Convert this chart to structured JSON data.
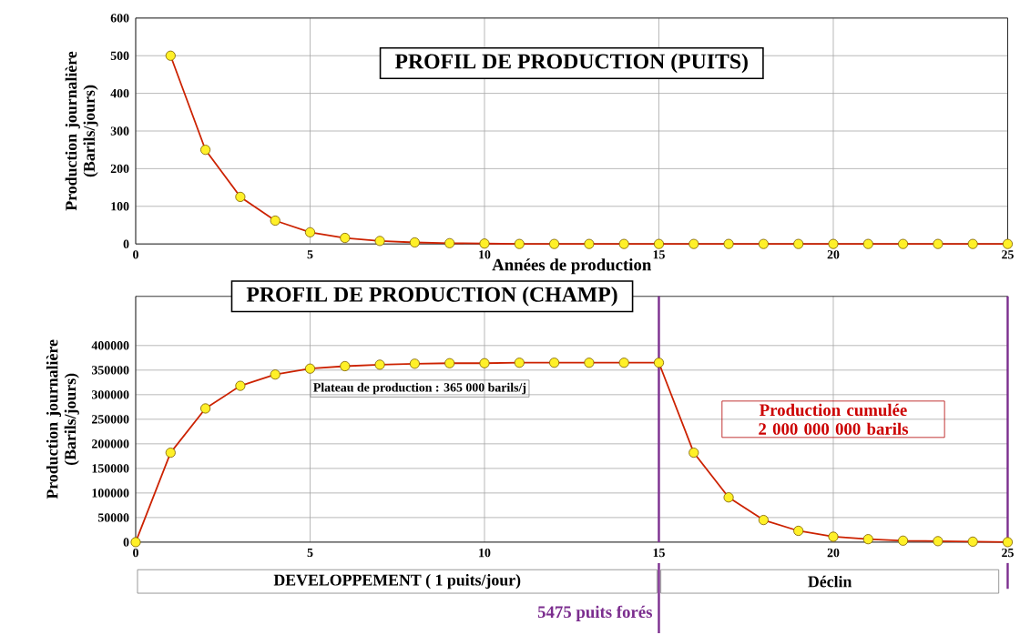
{
  "chart_data": [
    {
      "type": "line",
      "title": "PROFIL DE PRODUCTION (PUITS)",
      "xlabel": "Années de production",
      "ylabel": "Production journalière (Barils/jours)",
      "x": [
        1,
        2,
        3,
        4,
        5,
        6,
        7,
        8,
        9,
        10,
        11,
        12,
        13,
        14,
        15,
        16,
        17,
        18,
        19,
        20,
        21,
        22,
        23,
        24,
        25
      ],
      "series": [
        {
          "color": "#cc2200",
          "values": [
            500,
            250,
            125,
            62,
            31,
            16,
            8,
            4,
            2,
            1,
            0,
            0,
            0,
            0,
            0,
            0,
            0,
            0,
            0,
            0,
            0,
            0,
            0,
            0,
            0
          ]
        }
      ],
      "xlim": [
        0,
        25
      ],
      "ylim": [
        0,
        600
      ],
      "xticks": [
        0,
        5,
        10,
        15,
        20,
        25
      ],
      "yticks": [
        0,
        100,
        200,
        300,
        400,
        500,
        600
      ],
      "grid": true,
      "marker": "circle"
    },
    {
      "type": "line",
      "title": "PROFIL DE PRODUCTION (CHAMP)",
      "ylabel": "Production journalière (Barils/jours)",
      "x": [
        0,
        1,
        2,
        3,
        4,
        5,
        6,
        7,
        8,
        9,
        10,
        11,
        12,
        13,
        14,
        15,
        16,
        17,
        18,
        19,
        20,
        21,
        22,
        23,
        24,
        25
      ],
      "series": [
        {
          "color": "#cc2200",
          "values": [
            0,
            182000,
            272000,
            318000,
            341000,
            353000,
            358000,
            361000,
            363000,
            364000,
            364000,
            365000,
            365000,
            365000,
            365000,
            365000,
            182000,
            91000,
            45000,
            23000,
            11000,
            6000,
            3000,
            2000,
            1000,
            0
          ]
        }
      ],
      "xlim": [
        0,
        25
      ],
      "ylim": [
        0,
        500000
      ],
      "xticks": [
        0,
        5,
        10,
        15,
        20,
        25
      ],
      "yticks": [
        0,
        50000,
        100000,
        150000,
        200000,
        250000,
        300000,
        350000,
        400000
      ],
      "grid": true,
      "marker": "circle",
      "ref_lines": [
        {
          "axis": "x",
          "value": 15,
          "label": "5475 puits forés",
          "color": "#7b2d8e"
        },
        {
          "axis": "x",
          "value": 25,
          "color": "#7b2d8e"
        }
      ],
      "annotations": [
        "Plateau de production : 365 000 barils/j",
        "Production cumulée 2 000 000 000 barils",
        "DEVELOPPEMENT ( 1 puits/jour)",
        "Déclin"
      ]
    }
  ]
}
